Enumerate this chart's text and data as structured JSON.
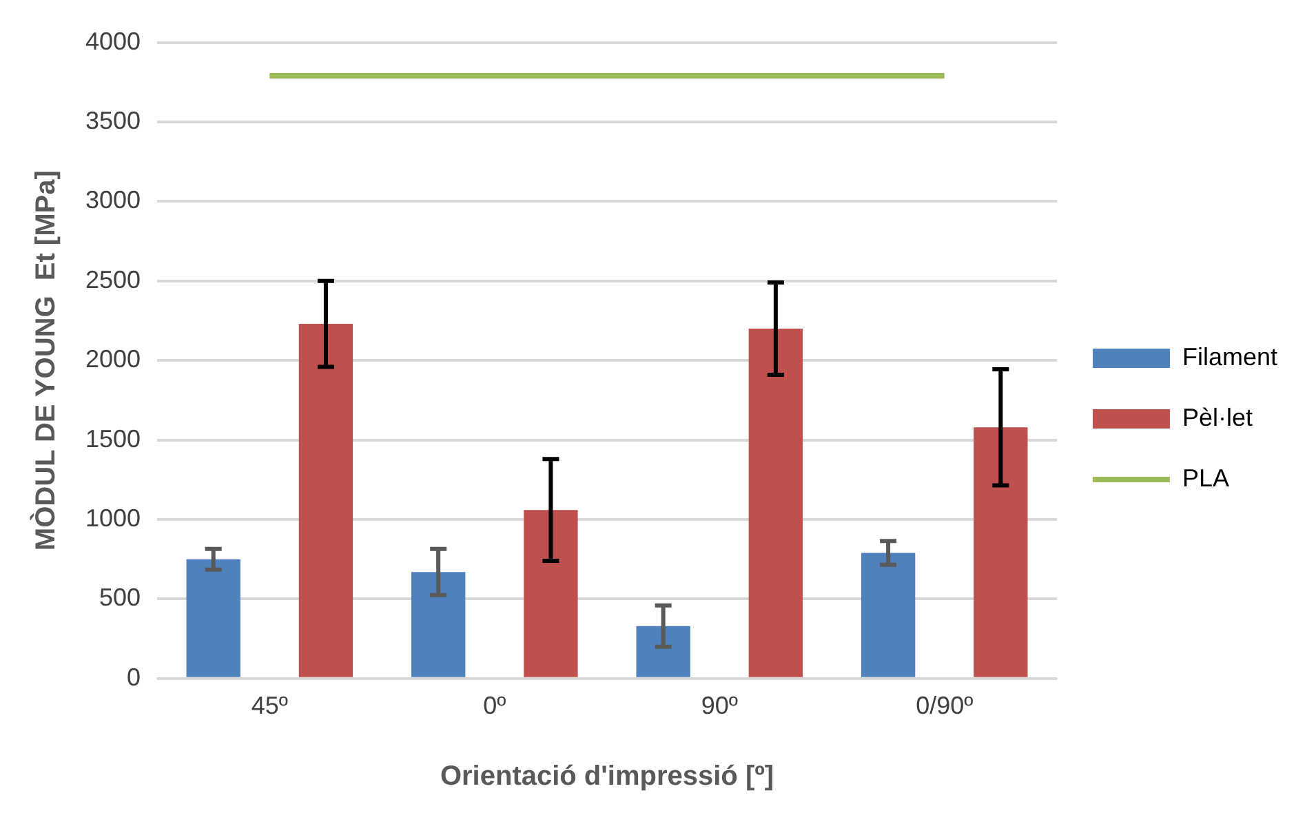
{
  "chart_data": {
    "type": "bar",
    "xlabel": "Orientació d'impressió [º]",
    "ylabel": "MÒDUL DE YOUNG  Et [MPa]",
    "categories": [
      "45º",
      "0º",
      "90º",
      "0/90º"
    ],
    "series": [
      {
        "name": "Filament",
        "color": "#4f81bd",
        "values": [
          750,
          670,
          330,
          790
        ],
        "errors": [
          65,
          145,
          130,
          75
        ]
      },
      {
        "name": "Pèl·let",
        "color": "#c0504d",
        "values": [
          2230,
          1060,
          2200,
          1580
        ],
        "errors": [
          270,
          320,
          290,
          365
        ]
      },
      {
        "name": "PLA",
        "type": "line",
        "color": "#9bbb59",
        "values": [
          3790,
          3790,
          3790,
          3790
        ],
        "marker": "none"
      }
    ],
    "ylim": [
      0,
      4000
    ],
    "yticks": [
      0,
      500,
      1000,
      1500,
      2000,
      2500,
      3000,
      3500,
      4000
    ],
    "grid": "y",
    "legend": "right"
  }
}
